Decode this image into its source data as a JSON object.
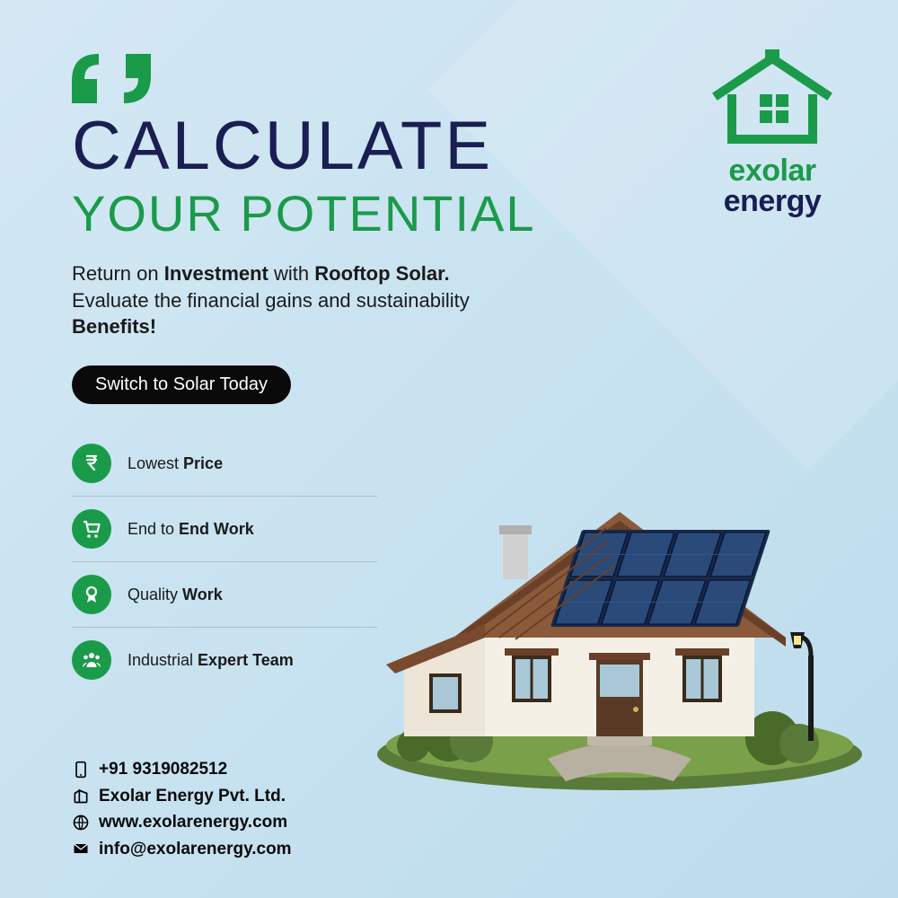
{
  "colors": {
    "green": "#1a9b4a",
    "navy": "#1a1e52",
    "black": "#0a0a0a",
    "bg_light": "#d4e8f4"
  },
  "logo": {
    "line1": "exolar",
    "line2": "energy"
  },
  "headline": "CALCULATE",
  "subhead": "YOUR POTENTIAL",
  "description": {
    "pre": "Return on ",
    "bold1": "Investment",
    "mid1": " with ",
    "bold2": "Rooftop Solar.",
    "line2": "Evaluate the financial gains and sustainability",
    "bold3": "Benefits!"
  },
  "cta_label": "Switch to Solar Today",
  "features": [
    {
      "icon": "rupee-down-icon",
      "pre": "Lowest ",
      "bold": "Price"
    },
    {
      "icon": "cart-icon",
      "pre": "End to ",
      "bold": "End Work"
    },
    {
      "icon": "ribbon-icon",
      "pre": "Quality ",
      "bold": "Work"
    },
    {
      "icon": "team-icon",
      "pre": "Industrial ",
      "bold": "Expert Team"
    }
  ],
  "contact": {
    "phone": "+91 9319082512",
    "company": "Exolar Energy Pvt. Ltd.",
    "website": "www.exolarenergy.com",
    "email": "info@exolarenergy.com"
  }
}
